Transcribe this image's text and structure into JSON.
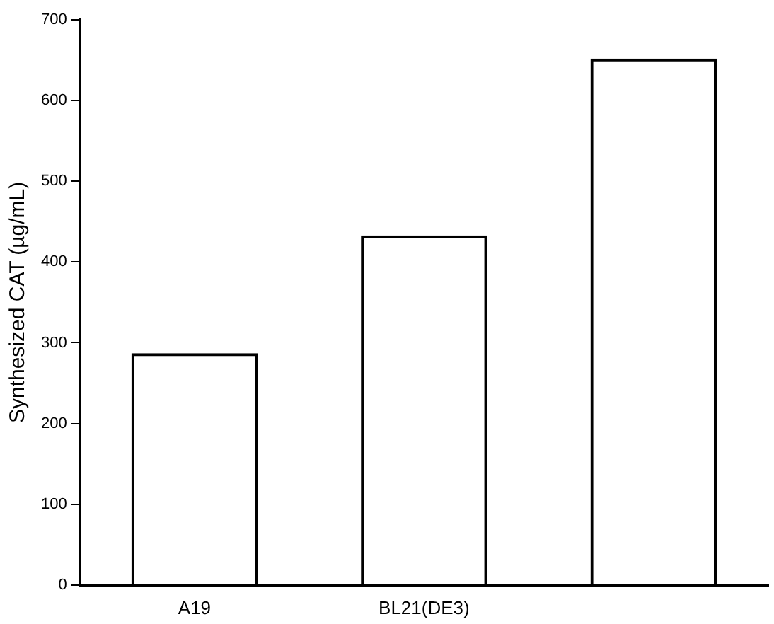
{
  "chart_data": {
    "type": "bar",
    "ylabel": "Synthesized CAT (µg/mL)",
    "categories": [
      "A19",
      "BL21(DE3)",
      null
    ],
    "values": [
      287,
      433,
      652
    ],
    "color": "#000000",
    "ylim": [
      0,
      700
    ],
    "yticks": [
      0,
      100,
      200,
      300,
      400,
      500,
      600,
      700
    ],
    "grid": false
  }
}
